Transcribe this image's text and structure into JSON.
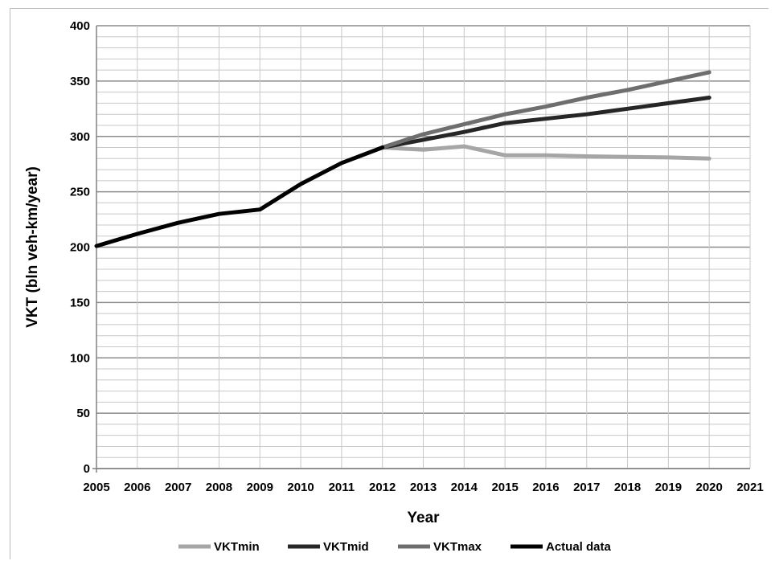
{
  "chart_data": {
    "type": "line",
    "title": "",
    "xlabel": "Year",
    "ylabel": "VKT (bln veh-km/year)",
    "xlim": [
      2005,
      2021
    ],
    "ylim": [
      0,
      400
    ],
    "x_ticks": [
      "2005",
      "2006",
      "2007",
      "2008",
      "2009",
      "2010",
      "2011",
      "2012",
      "2013",
      "2014",
      "2015",
      "2016",
      "2017",
      "2018",
      "2019",
      "2020",
      "2021"
    ],
    "y_ticks": [
      "0",
      "50",
      "100",
      "150",
      "200",
      "250",
      "300",
      "350",
      "400"
    ],
    "grid": true,
    "legend_position": "bottom",
    "series": [
      {
        "name": "VKTmin",
        "color": "#a6a6a6",
        "x": [
          2012,
          2013,
          2014,
          2015,
          2016,
          2017,
          2018,
          2019,
          2020
        ],
        "y": [
          290,
          288,
          291,
          283,
          283,
          282,
          281.5,
          281,
          280
        ]
      },
      {
        "name": "VKTmid",
        "color": "#262626",
        "x": [
          2012,
          2013,
          2014,
          2015,
          2016,
          2017,
          2018,
          2019,
          2020
        ],
        "y": [
          290,
          297,
          304,
          312,
          316,
          320,
          325,
          330,
          335
        ]
      },
      {
        "name": "VKTmax",
        "color": "#6e6e6e",
        "x": [
          2012,
          2013,
          2014,
          2015,
          2016,
          2017,
          2018,
          2019,
          2020
        ],
        "y": [
          290,
          302,
          311,
          320,
          327,
          335,
          342,
          350,
          358
        ]
      },
      {
        "name": "Actual data",
        "color": "#000000",
        "x": [
          2005,
          2006,
          2007,
          2008,
          2009,
          2010,
          2011,
          2012
        ],
        "y": [
          201,
          212,
          222,
          230,
          234,
          257,
          276,
          290
        ]
      }
    ]
  }
}
